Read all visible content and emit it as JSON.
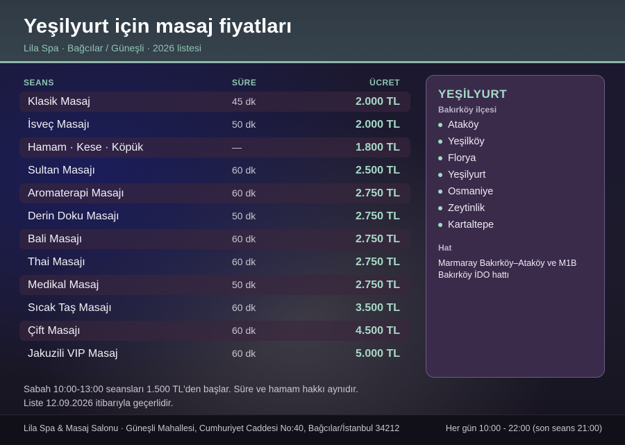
{
  "header": {
    "title": "Yeşilyurt için masaj fiyatları",
    "subtitle": "Lila Spa · Bağcılar / Güneşli · 2026 listesi"
  },
  "table": {
    "columns": {
      "name": "SEANS",
      "duration": "SÜRE",
      "price": "ÜCRET"
    },
    "rows": [
      {
        "name": "Klasik Masaj",
        "duration": "45 dk",
        "price": "2.000 TL"
      },
      {
        "name": "İsveç Masajı",
        "duration": "50 dk",
        "price": "2.000 TL"
      },
      {
        "name": "Hamam · Kese · Köpük",
        "duration": "—",
        "price": "1.800 TL"
      },
      {
        "name": "Sultan Masajı",
        "duration": "60 dk",
        "price": "2.500 TL"
      },
      {
        "name": "Aromaterapi Masajı",
        "duration": "60 dk",
        "price": "2.750 TL"
      },
      {
        "name": "Derin Doku Masajı",
        "duration": "50 dk",
        "price": "2.750 TL"
      },
      {
        "name": "Bali Masajı",
        "duration": "60 dk",
        "price": "2.750 TL"
      },
      {
        "name": "Thai Masajı",
        "duration": "60 dk",
        "price": "2.750 TL"
      },
      {
        "name": "Medikal Masaj",
        "duration": "50 dk",
        "price": "2.750 TL"
      },
      {
        "name": "Sıcak Taş Masajı",
        "duration": "60 dk",
        "price": "3.500 TL"
      },
      {
        "name": "Çift Masajı",
        "duration": "60 dk",
        "price": "4.500 TL"
      },
      {
        "name": "Jakuzili VIP Masaj",
        "duration": "60 dk",
        "price": "5.000 TL"
      }
    ]
  },
  "panel": {
    "title": "YEŞİLYURT",
    "district": "Bakırköy ilçesi",
    "neighborhoods": [
      "Ataköy",
      "Yeşilköy",
      "Florya",
      "Yeşilyurt",
      "Osmaniye",
      "Zeytinlik",
      "Kartaltepe"
    ],
    "transit_label": "Hat",
    "transit_text": "Marmaray Bakırköy–Ataköy ve M1B Bakırköy İDO hattı"
  },
  "note": {
    "line1": "Sabah 10:00-13:00 seansları 1.500 TL'den başlar. Süre ve hamam hakkı aynıdır.",
    "line2": "Liste 12.09.2026 itibarıyla geçerlidir."
  },
  "footer": {
    "address": "Lila Spa & Masaj Salonu · Güneşli Mahallesi, Cumhuriyet Caddesi No:40, Bağcılar/İstanbul 34212",
    "hours": "Her gün 10:00 - 22:00 (son seans 21:00)"
  },
  "colors": {
    "accent": "#a6d9c6",
    "header_bg": "#36424c",
    "panel_bg": "#3a2b4b"
  }
}
